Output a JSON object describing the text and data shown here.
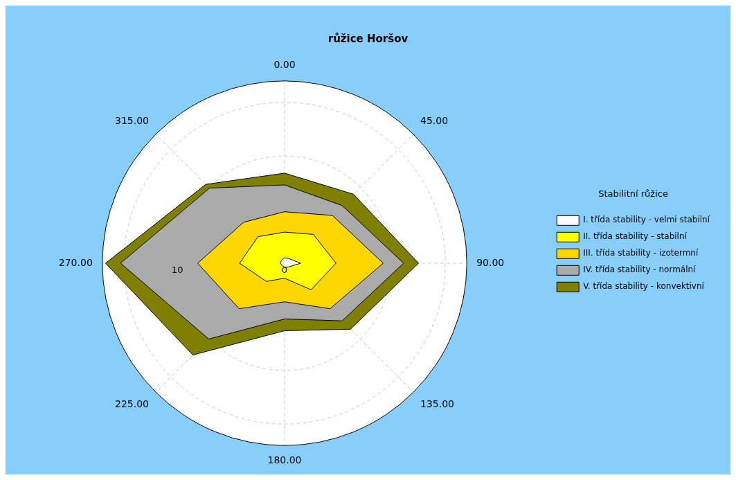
{
  "chart_data": {
    "type": "radar",
    "title": "růžice Horšov",
    "legend_title": "Stabilitní růžice",
    "legend": "right",
    "grid": true,
    "categories": [
      "0.00",
      "45.00",
      "90.00",
      "135.00",
      "180.00",
      "225.00",
      "270.00",
      "315.00"
    ],
    "ylim": [
      0,
      17
    ],
    "yticks": [
      0,
      10
    ],
    "series": [
      {
        "name": "I. třída stability - velmi stabilní",
        "color": "#ffffff",
        "values": [
          0.5,
          0.6,
          1.5,
          0.5,
          0.4,
          0.3,
          0.4,
          0.4
        ]
      },
      {
        "name": "II. třída stability - stabilní",
        "color": "#ffff00",
        "values": [
          2.9,
          3.8,
          4.8,
          3.5,
          1.4,
          2.4,
          4.2,
          3.5
        ]
      },
      {
        "name": "III. třída stability - izotermní",
        "color": "#ffd700",
        "values": [
          4.8,
          6.3,
          9.2,
          6.0,
          3.6,
          6.0,
          8.1,
          5.4
        ]
      },
      {
        "name": "IV. třída stability - normální",
        "color": "#aaaaaa",
        "values": [
          7.3,
          7.6,
          11.1,
          7.6,
          5.2,
          10.0,
          15.3,
          9.9
        ]
      },
      {
        "name": "V. třída stability - konvektivní",
        "color": "#808000",
        "values": [
          8.4,
          9.1,
          12.5,
          8.7,
          6.3,
          12.1,
          16.7,
          10.4
        ]
      }
    ]
  }
}
